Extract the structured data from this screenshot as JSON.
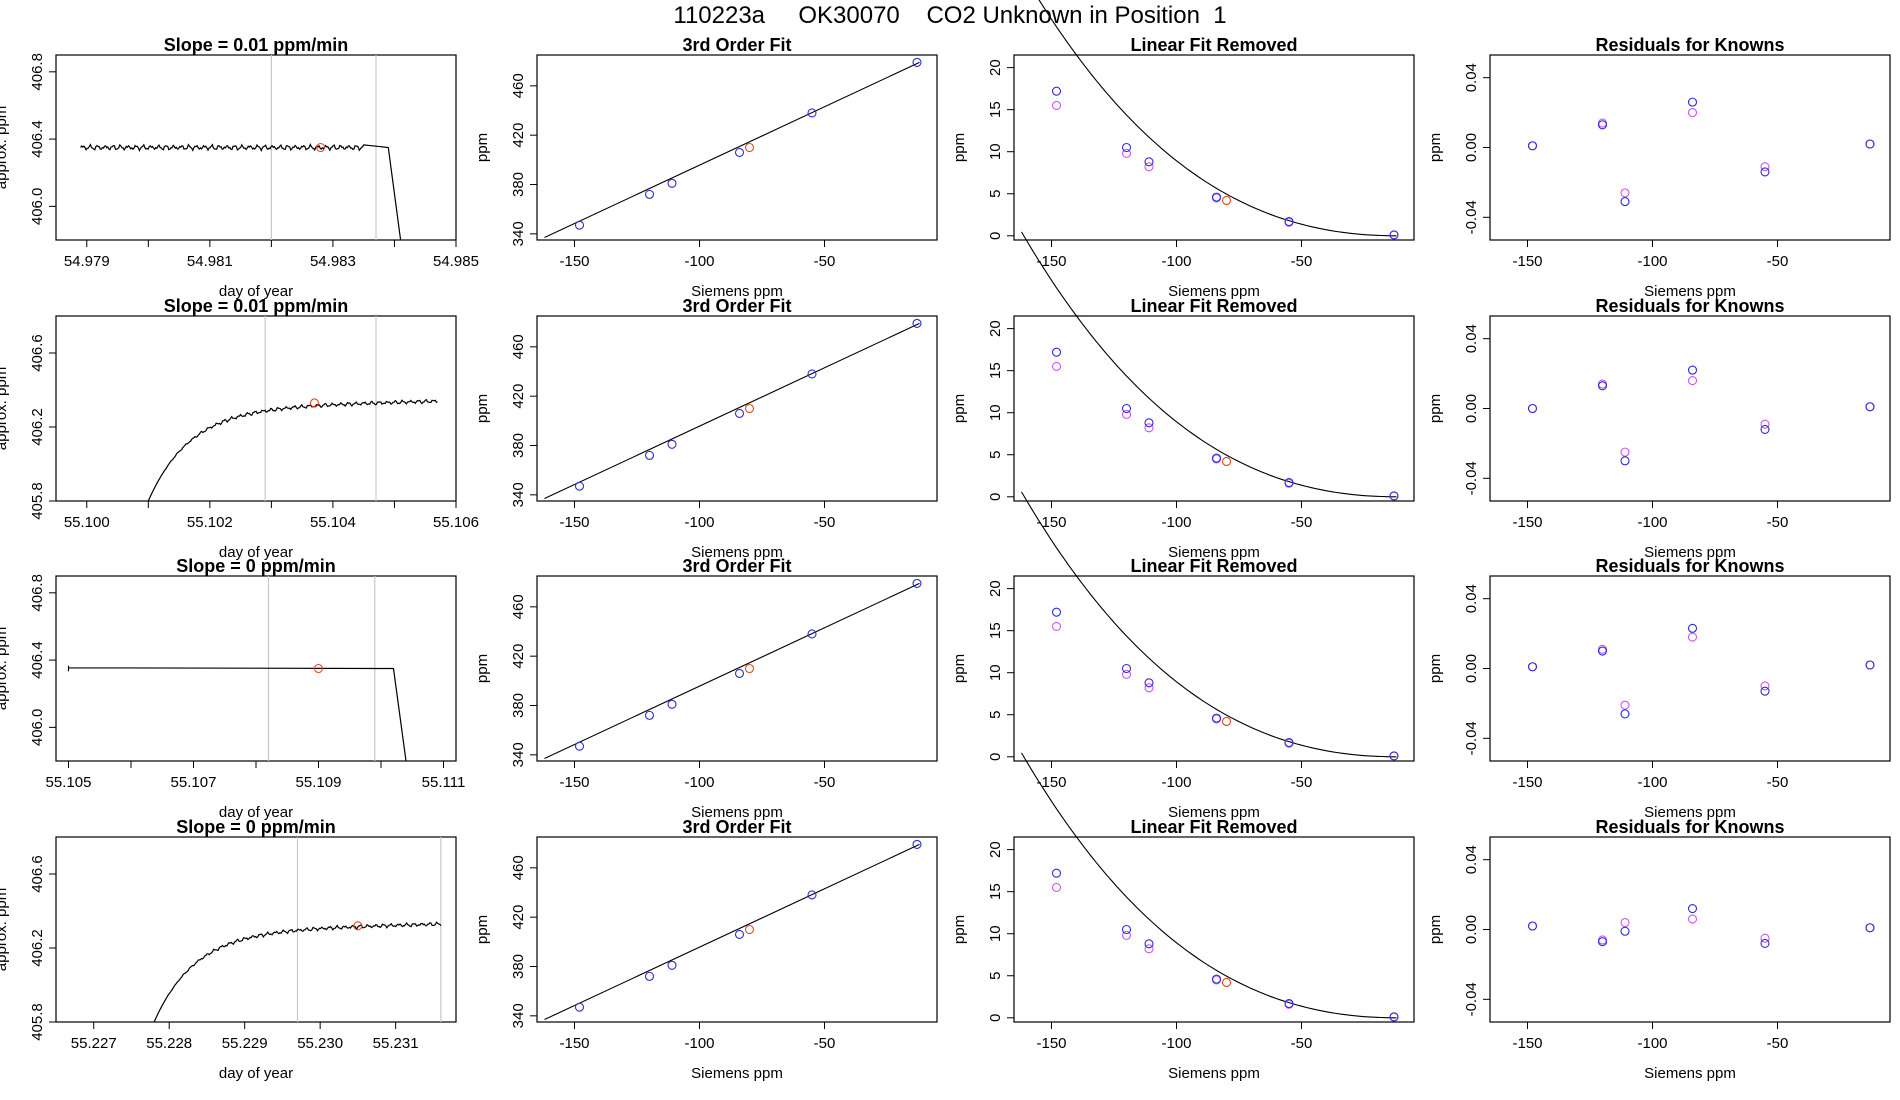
{
  "figure": {
    "title": "110223a     OK30070    CO2 Unknown in Position  1"
  },
  "colors": {
    "axis": "#000000",
    "trace": "#000000",
    "vline": "#c8c8c8",
    "known": "#2b2bd6",
    "known_alt": "#cc55ee",
    "unknown": "#e0441a",
    "curve": "#000000"
  },
  "chart_data": [
    {
      "row": 1,
      "type": "line",
      "title": "Slope =  0.01  ppm/min",
      "xlabel": "day of year",
      "ylabel": "approx. ppm",
      "xlim": [
        54.9785,
        54.985
      ],
      "ylim": [
        405.8,
        406.9
      ],
      "xticks": [
        54.979,
        54.98,
        54.981,
        54.982,
        54.983,
        54.984,
        54.985
      ],
      "xtick_labels": [
        "54.979",
        "",
        "54.981",
        "",
        "54.983",
        "",
        "54.985"
      ],
      "yticks": [
        406.0,
        406.4,
        406.8
      ],
      "ytick_labels": [
        "406.0",
        "406.4",
        "406.8"
      ],
      "trace_x": [
        54.9789,
        54.9835,
        54.9839,
        54.9841
      ],
      "trace_y": [
        406.35,
        406.35,
        406.35,
        405.8
      ],
      "trace_start": "flat",
      "noise": 0.018,
      "vlines": [
        54.982,
        54.9837
      ],
      "marker": {
        "x": 54.9828,
        "y": 406.35
      }
    },
    {
      "row": 2,
      "type": "line",
      "title": "Slope =  0.01  ppm/min",
      "xlabel": "day of year",
      "ylabel": "approx. ppm",
      "xlim": [
        55.0995,
        55.106
      ],
      "ylim": [
        405.8,
        406.8
      ],
      "xticks": [
        55.1,
        55.101,
        55.102,
        55.103,
        55.104,
        55.105,
        55.106
      ],
      "xtick_labels": [
        "55.100",
        "",
        "55.102",
        "",
        "55.104",
        "",
        "55.106"
      ],
      "yticks": [
        405.8,
        406.2,
        406.6
      ],
      "ytick_labels": [
        "405.8",
        "406.2",
        "406.6"
      ],
      "trace_x": [
        55.101,
        55.1057
      ],
      "trace_y": [
        405.8,
        406.34
      ],
      "trace_start": "rise",
      "noise": 0.012,
      "vlines": [
        55.1029,
        55.1047
      ],
      "marker": {
        "x": 55.1037,
        "y": 406.33
      }
    },
    {
      "row": 3,
      "type": "line",
      "title": "Slope =  0  ppm/min",
      "xlabel": "day of year",
      "ylabel": "approx. ppm",
      "xlim": [
        55.1048,
        55.1112
      ],
      "ylim": [
        405.8,
        406.9
      ],
      "xticks": [
        55.105,
        55.106,
        55.107,
        55.108,
        55.109,
        55.11,
        55.111
      ],
      "xtick_labels": [
        "55.105",
        "",
        "55.107",
        "",
        "55.109",
        "",
        "55.111"
      ],
      "yticks": [
        406.0,
        406.4,
        406.8
      ],
      "ytick_labels": [
        "406.0",
        "406.4",
        "406.8"
      ],
      "trace_x": [
        55.105,
        55.1102,
        55.1104
      ],
      "trace_y": [
        406.35,
        406.35,
        405.8
      ],
      "trace_start": "flat",
      "noise": 0.018,
      "vlines": [
        55.1082,
        55.1099
      ],
      "marker": {
        "x": 55.109,
        "y": 406.35
      }
    },
    {
      "row": 4,
      "type": "line",
      "title": "Slope =  0  ppm/min",
      "xlabel": "day of year",
      "ylabel": "approx. ppm",
      "xlim": [
        55.2265,
        55.2318
      ],
      "ylim": [
        405.8,
        406.8
      ],
      "xticks": [
        55.227,
        55.228,
        55.229,
        55.23,
        55.231
      ],
      "xtick_labels": [
        "55.227",
        "55.228",
        "55.229",
        "55.230",
        "55.231"
      ],
      "yticks": [
        405.8,
        406.2,
        406.6
      ],
      "ytick_labels": [
        "405.8",
        "406.2",
        "406.6"
      ],
      "trace_x": [
        55.2278,
        55.2316
      ],
      "trace_y": [
        405.8,
        406.33
      ],
      "trace_start": "rise",
      "noise": 0.012,
      "vlines": [
        55.2297,
        55.2316
      ],
      "marker": {
        "x": 55.2305,
        "y": 406.32
      }
    }
  ],
  "fit_panels": {
    "fit3": {
      "title": "3rd Order Fit",
      "xlabel": "Siemens ppm",
      "ylabel": "ppm",
      "xlim": [
        -165,
        -5
      ],
      "ylim": [
        335,
        485
      ],
      "xticks": [
        -150,
        -100,
        -50
      ],
      "xtick_labels": [
        "-150",
        "-100",
        "-50"
      ],
      "yticks": [
        340,
        380,
        420,
        460
      ],
      "ytick_labels": [
        "340",
        "380",
        "420",
        "460"
      ],
      "curve_x": [
        -162,
        -12
      ],
      "curve_y": [
        337,
        479
      ],
      "knowns": [
        {
          "x": -148,
          "y": 347
        },
        {
          "x": -120,
          "y": 372
        },
        {
          "x": -111,
          "y": 381
        },
        {
          "x": -84,
          "y": 406
        },
        {
          "x": -55,
          "y": 438
        },
        {
          "x": -13,
          "y": 479
        }
      ],
      "unknown": {
        "x": -80,
        "y": 410
      }
    },
    "linfit": {
      "title": "Linear Fit Removed",
      "xlabel": "Siemens ppm",
      "ylabel": "ppm",
      "xlim": [
        -165,
        -5
      ],
      "ylim": [
        -0.5,
        21.5
      ],
      "xticks": [
        -150,
        -100,
        -50
      ],
      "xtick_labels": [
        "-150",
        "-100",
        "-50"
      ],
      "yticks": [
        0,
        5,
        10,
        15,
        20
      ],
      "ytick_labels": [
        "0",
        "5",
        "10",
        "15",
        "20"
      ],
      "curve_coef": {
        "a": 0.0008,
        "b": 4e-05,
        "x0": -12,
        "y0": 0
      },
      "knowns": [
        {
          "x": -148,
          "y": 17.2
        },
        {
          "x": -120,
          "y": 10.5
        },
        {
          "x": -111,
          "y": 8.8
        },
        {
          "x": -84,
          "y": 4.6
        },
        {
          "x": -55,
          "y": 1.7
        },
        {
          "x": -13,
          "y": 0.1
        }
      ],
      "knowns_alt": [
        {
          "x": -148,
          "y": 15.5
        },
        {
          "x": -120,
          "y": 9.8
        },
        {
          "x": -111,
          "y": 8.2
        },
        {
          "x": -84,
          "y": 4.5
        },
        {
          "x": -55,
          "y": 1.6
        },
        {
          "x": -13,
          "y": 0.1
        }
      ],
      "unknown": {
        "x": -80,
        "y": 4.2
      }
    },
    "resid": {
      "title": "Residuals for Knowns",
      "xlabel": "Siemens ppm",
      "ylabel": "ppm",
      "xlim": [
        -165,
        -5
      ],
      "ylim": [
        -0.053,
        0.053
      ],
      "xticks": [
        -150,
        -100,
        -50
      ],
      "xtick_labels": [
        "-150",
        "-100",
        "-50"
      ],
      "yticks": [
        -0.04,
        0.0,
        0.04
      ],
      "ytick_labels": [
        "-0.04",
        "0.00",
        "0.04"
      ],
      "xs": [
        -148,
        -120,
        -111,
        -84,
        -55,
        -13
      ],
      "rows": [
        {
          "knowns": [
            0.001,
            0.013,
            -0.031,
            0.026,
            -0.014,
            0.002
          ],
          "knowns_alt": [
            0.001,
            0.014,
            -0.026,
            0.02,
            -0.011,
            0.002
          ]
        },
        {
          "knowns": [
            0.0,
            0.013,
            -0.03,
            0.022,
            -0.012,
            0.001
          ],
          "knowns_alt": [
            0.0,
            0.014,
            -0.025,
            0.016,
            -0.009,
            0.001
          ]
        },
        {
          "knowns": [
            0.001,
            0.01,
            -0.026,
            0.023,
            -0.013,
            0.002
          ],
          "knowns_alt": [
            0.001,
            0.011,
            -0.021,
            0.018,
            -0.01,
            0.002
          ]
        },
        {
          "knowns": [
            0.002,
            -0.007,
            -0.001,
            0.012,
            -0.008,
            0.001
          ],
          "knowns_alt": [
            0.002,
            -0.006,
            0.004,
            0.006,
            -0.005,
            0.001
          ]
        }
      ]
    }
  }
}
